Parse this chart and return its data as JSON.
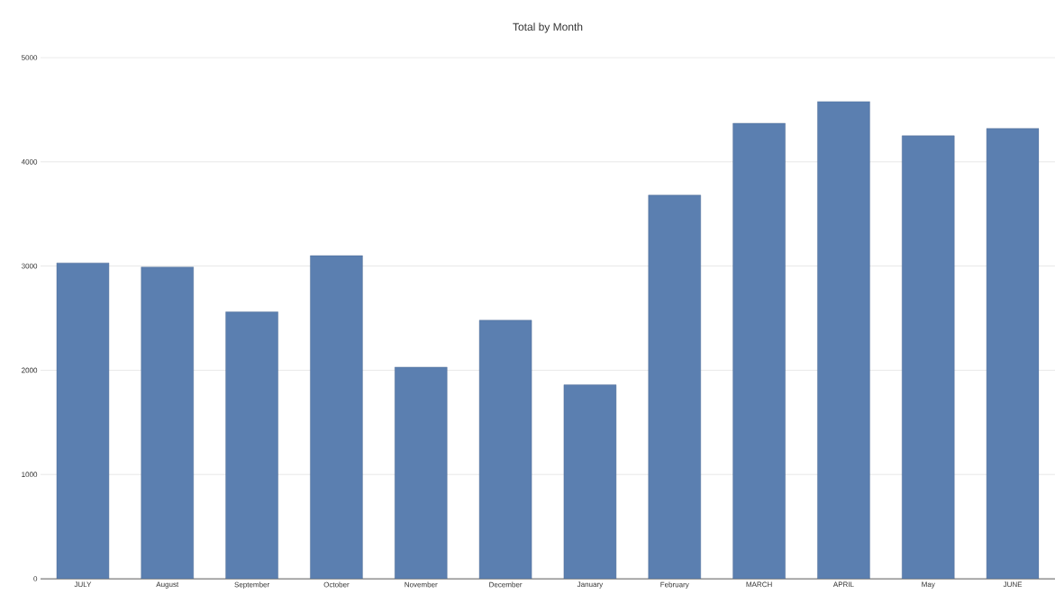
{
  "chart_data": {
    "type": "bar",
    "title": "Total by Month",
    "categories": [
      "JULY",
      "August",
      "September",
      "October",
      "November",
      "December",
      "January",
      "February",
      "MARCH",
      "APRIL",
      "May",
      "JUNE"
    ],
    "values": [
      3030,
      2990,
      2560,
      3100,
      2030,
      2480,
      1860,
      3680,
      4370,
      4580,
      4250,
      4320
    ],
    "color": "#5b7fb0",
    "ylim": [
      0,
      5000
    ],
    "yticks": [
      0,
      1000,
      2000,
      3000,
      4000,
      5000
    ],
    "grid": "y"
  }
}
